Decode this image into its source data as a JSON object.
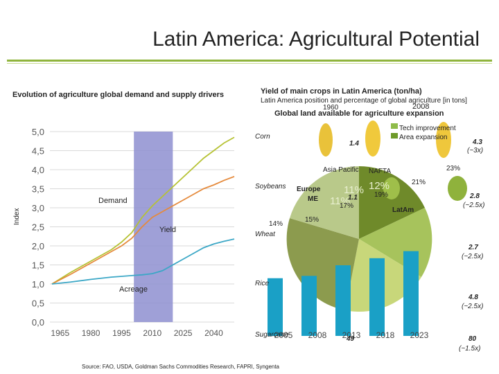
{
  "slide": {
    "title": "Latin America: Agricultural Potential",
    "left_heading": "Evolution of agriculture global demand and supply drivers",
    "source": "Source: FAO, USDA, Goldman Sachs Commodities Research, FAPRI, Syngenta"
  },
  "chart_data": [
    {
      "type": "line",
      "title": "",
      "ylabel": "Index",
      "xlabel": "",
      "ylim": [
        0,
        5
      ],
      "xlim": [
        1960,
        2050
      ],
      "y_ticks": [
        "0,0",
        "0,5",
        "1,0",
        "1,5",
        "2,0",
        "2,5",
        "3,0",
        "3,5",
        "4,0",
        "4,5",
        "5,0"
      ],
      "x_ticks": [
        "1965",
        "1980",
        "1995",
        "2010",
        "2025",
        "2040"
      ],
      "x_tick_values": [
        1965,
        1980,
        1995,
        2010,
        2025,
        2040
      ],
      "shaded_range": [
        2001,
        2020
      ],
      "grid": true,
      "colors": {
        "shade": "#8e8fd0",
        "demand": "#b6c234",
        "yield": "#e58a3c",
        "acreage": "#3ba7c6",
        "dots": "#c8b86a"
      },
      "series": [
        {
          "name": "Demand",
          "x": [
            1961,
            1970,
            1980,
            1990,
            1995,
            2000,
            2005,
            2010,
            2015,
            2020,
            2025,
            2030,
            2035,
            2040,
            2045,
            2050
          ],
          "y": [
            1.0,
            1.3,
            1.6,
            1.9,
            2.1,
            2.35,
            2.75,
            3.05,
            3.3,
            3.55,
            3.8,
            4.05,
            4.3,
            4.5,
            4.7,
            4.85
          ]
        },
        {
          "name": "Yield",
          "x": [
            1961,
            1970,
            1980,
            1990,
            1995,
            2000,
            2005,
            2010,
            2015,
            2020,
            2025,
            2030,
            2035,
            2040,
            2045,
            2050
          ],
          "y": [
            1.0,
            1.25,
            1.55,
            1.85,
            2.0,
            2.2,
            2.5,
            2.75,
            2.9,
            3.05,
            3.2,
            3.35,
            3.5,
            3.6,
            3.72,
            3.82
          ]
        },
        {
          "name": "Acreage",
          "x": [
            1961,
            1970,
            1980,
            1990,
            1995,
            2000,
            2005,
            2010,
            2015,
            2020,
            2025,
            2030,
            2035,
            2040,
            2045,
            2050
          ],
          "y": [
            1.0,
            1.05,
            1.12,
            1.18,
            1.2,
            1.22,
            1.24,
            1.27,
            1.35,
            1.5,
            1.65,
            1.8,
            1.95,
            2.05,
            2.12,
            2.18
          ]
        }
      ],
      "labels": {
        "demand": "Demand",
        "yield": "Yield",
        "acreage": "Acreage"
      }
    },
    {
      "type": "bar",
      "title": "",
      "categories": [
        "2005",
        "2008",
        "2013",
        "2018",
        "2023"
      ],
      "values": [
        4.9,
        5.1,
        6.0,
        6.6,
        7.2
      ],
      "ylim": [
        0,
        10
      ],
      "color": "#1aa0c6"
    }
  ],
  "right": {
    "heading_a": "Yield of main crops in Latin America (ton/ha)",
    "heading_b": "Latin America position and percentage of global agriculture [in tons]",
    "year_a": "1960",
    "year_b": "2008",
    "heading_c": "Global land available for agriculture expansion",
    "legend": {
      "tech": "Tech improvement",
      "area": "Area expansion",
      "tech_color": "#8fbc4a",
      "area_color": "#6e9a2a"
    },
    "crops": [
      {
        "name": "Corn",
        "start": "1.4",
        "end": "4.3",
        "factor": "(~3x)"
      },
      {
        "name": "Soybeans",
        "start": "1.1",
        "end": "2.8",
        "factor": "(~2.5x)"
      },
      {
        "name": "Wheat",
        "start": "",
        "end": "2.7",
        "factor": "(~2.5x)"
      },
      {
        "name": "Rice",
        "start": "",
        "end": "4.8",
        "factor": "(~2.5x)"
      },
      {
        "name": "Sugarcane",
        "start": "49",
        "end": "80",
        "factor": "(~1.5x)"
      }
    ],
    "pie": {
      "regions": [
        "Asia Pacific",
        "NAFTA",
        "Europe",
        "ME",
        "LatAm"
      ],
      "percents": [
        "23%",
        "21%",
        "11%",
        "11%",
        "17%",
        "19%",
        "14%",
        "15%",
        "12%"
      ]
    }
  }
}
